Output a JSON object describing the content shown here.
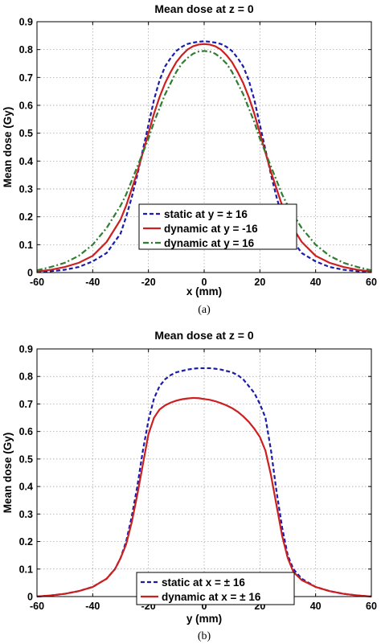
{
  "chart_data": [
    {
      "type": "line",
      "title": "Mean dose at  z = 0",
      "xlabel": "x (mm)",
      "ylabel": "Mean dose (Gy)",
      "caption": "(a)",
      "xlim": [
        -60,
        60
      ],
      "ylim": [
        0,
        0.9
      ],
      "xticks": [
        "-60",
        "-40",
        "-20",
        "0",
        "20",
        "40",
        "60"
      ],
      "yticks": [
        "0",
        "0.1",
        "0.2",
        "0.3",
        "0.4",
        "0.5",
        "0.6",
        "0.7",
        "0.8",
        "0.9"
      ],
      "grid": true,
      "legend_position": "lower-center",
      "series": [
        {
          "name": "static at y = ± 16",
          "color": "#1c1ca8",
          "dash": "dashed",
          "x": [
            -60,
            -55,
            -50,
            -45,
            -40,
            -35,
            -30,
            -28,
            -26,
            -24,
            -22,
            -20,
            -18,
            -16,
            -14,
            -12,
            -10,
            -8,
            -6,
            -4,
            -2,
            0,
            2,
            4,
            6,
            8,
            10,
            12,
            14,
            16,
            18,
            20,
            22,
            24,
            26,
            28,
            30,
            35,
            40,
            45,
            50,
            55,
            60
          ],
          "y": [
            0.002,
            0.005,
            0.01,
            0.02,
            0.04,
            0.07,
            0.14,
            0.2,
            0.27,
            0.35,
            0.44,
            0.53,
            0.62,
            0.69,
            0.74,
            0.77,
            0.795,
            0.81,
            0.82,
            0.825,
            0.828,
            0.83,
            0.828,
            0.825,
            0.82,
            0.81,
            0.795,
            0.77,
            0.74,
            0.69,
            0.62,
            0.53,
            0.44,
            0.35,
            0.27,
            0.2,
            0.14,
            0.07,
            0.04,
            0.02,
            0.01,
            0.005,
            0.002
          ]
        },
        {
          "name": "dynamic at y = -16",
          "color": "#cc2020",
          "dash": "solid",
          "x": [
            -60,
            -55,
            -50,
            -45,
            -40,
            -35,
            -30,
            -28,
            -26,
            -24,
            -22,
            -20,
            -18,
            -16,
            -14,
            -12,
            -10,
            -8,
            -6,
            -4,
            -2,
            0,
            2,
            4,
            6,
            8,
            10,
            12,
            14,
            16,
            18,
            20,
            22,
            24,
            26,
            28,
            30,
            35,
            40,
            45,
            50,
            55,
            60
          ],
          "y": [
            0.004,
            0.01,
            0.02,
            0.035,
            0.06,
            0.11,
            0.19,
            0.24,
            0.3,
            0.36,
            0.43,
            0.5,
            0.57,
            0.63,
            0.68,
            0.72,
            0.755,
            0.78,
            0.8,
            0.812,
            0.818,
            0.82,
            0.818,
            0.812,
            0.8,
            0.78,
            0.755,
            0.72,
            0.68,
            0.63,
            0.57,
            0.5,
            0.43,
            0.36,
            0.3,
            0.24,
            0.19,
            0.11,
            0.06,
            0.035,
            0.02,
            0.01,
            0.004
          ]
        },
        {
          "name": "dynamic at y = 16",
          "color": "#2e7d32",
          "dash": "dash-dot",
          "x": [
            -60,
            -55,
            -50,
            -45,
            -40,
            -35,
            -30,
            -28,
            -26,
            -24,
            -22,
            -20,
            -18,
            -16,
            -14,
            -12,
            -10,
            -8,
            -6,
            -4,
            -2,
            0,
            2,
            4,
            6,
            8,
            10,
            12,
            14,
            16,
            18,
            20,
            22,
            24,
            26,
            28,
            30,
            35,
            40,
            45,
            50,
            55,
            60
          ],
          "y": [
            0.008,
            0.02,
            0.035,
            0.06,
            0.1,
            0.16,
            0.24,
            0.28,
            0.33,
            0.38,
            0.43,
            0.48,
            0.54,
            0.59,
            0.64,
            0.68,
            0.72,
            0.75,
            0.77,
            0.785,
            0.793,
            0.795,
            0.793,
            0.785,
            0.77,
            0.75,
            0.72,
            0.68,
            0.64,
            0.59,
            0.54,
            0.48,
            0.43,
            0.38,
            0.33,
            0.28,
            0.24,
            0.16,
            0.1,
            0.06,
            0.035,
            0.02,
            0.008
          ]
        }
      ]
    },
    {
      "type": "line",
      "title": "Mean dose at z = 0",
      "xlabel": "y (mm)",
      "ylabel": "Mean dose (Gy)",
      "caption": "(b)",
      "xlim": [
        -60,
        60
      ],
      "ylim": [
        0,
        0.9
      ],
      "xticks": [
        "-60",
        "-40",
        "-20",
        "0",
        "20",
        "40",
        "60"
      ],
      "yticks": [
        "0",
        "0.1",
        "0.2",
        "0.3",
        "0.4",
        "0.5",
        "0.6",
        "0.7",
        "0.8",
        "0.9"
      ],
      "grid": true,
      "legend_position": "lower-center",
      "series": [
        {
          "name": "static at x = ± 16",
          "color": "#1c1ca8",
          "dash": "dashed",
          "x": [
            -60,
            -55,
            -50,
            -45,
            -40,
            -35,
            -32,
            -30,
            -28,
            -26,
            -24,
            -22,
            -20,
            -18,
            -16,
            -14,
            -12,
            -10,
            -8,
            -6,
            -4,
            -2,
            0,
            2,
            4,
            6,
            8,
            10,
            12,
            14,
            16,
            18,
            20,
            22,
            24,
            26,
            28,
            30,
            32,
            35,
            40,
            45,
            50,
            55,
            60
          ],
          "y": [
            0.0,
            0.004,
            0.01,
            0.02,
            0.035,
            0.065,
            0.1,
            0.14,
            0.2,
            0.29,
            0.4,
            0.53,
            0.64,
            0.72,
            0.765,
            0.79,
            0.805,
            0.815,
            0.82,
            0.825,
            0.828,
            0.83,
            0.83,
            0.83,
            0.828,
            0.825,
            0.82,
            0.815,
            0.805,
            0.79,
            0.765,
            0.74,
            0.7,
            0.65,
            0.53,
            0.38,
            0.25,
            0.15,
            0.1,
            0.065,
            0.035,
            0.02,
            0.01,
            0.004,
            0.0
          ]
        },
        {
          "name": "dynamic at x = ± 16",
          "color": "#cc2020",
          "dash": "solid",
          "x": [
            -60,
            -55,
            -50,
            -45,
            -40,
            -35,
            -32,
            -30,
            -28,
            -26,
            -24,
            -22,
            -20,
            -18,
            -16,
            -14,
            -12,
            -10,
            -8,
            -6,
            -4,
            -2,
            0,
            2,
            4,
            6,
            8,
            10,
            12,
            14,
            16,
            18,
            20,
            22,
            24,
            26,
            28,
            30,
            32,
            35,
            40,
            45,
            50,
            55,
            60
          ],
          "y": [
            0.0,
            0.004,
            0.01,
            0.02,
            0.035,
            0.065,
            0.1,
            0.14,
            0.19,
            0.27,
            0.37,
            0.48,
            0.59,
            0.65,
            0.68,
            0.695,
            0.705,
            0.712,
            0.717,
            0.72,
            0.722,
            0.721,
            0.718,
            0.715,
            0.71,
            0.703,
            0.695,
            0.685,
            0.672,
            0.655,
            0.635,
            0.61,
            0.58,
            0.53,
            0.44,
            0.33,
            0.22,
            0.14,
            0.09,
            0.06,
            0.035,
            0.02,
            0.01,
            0.004,
            0.0
          ]
        }
      ]
    }
  ]
}
